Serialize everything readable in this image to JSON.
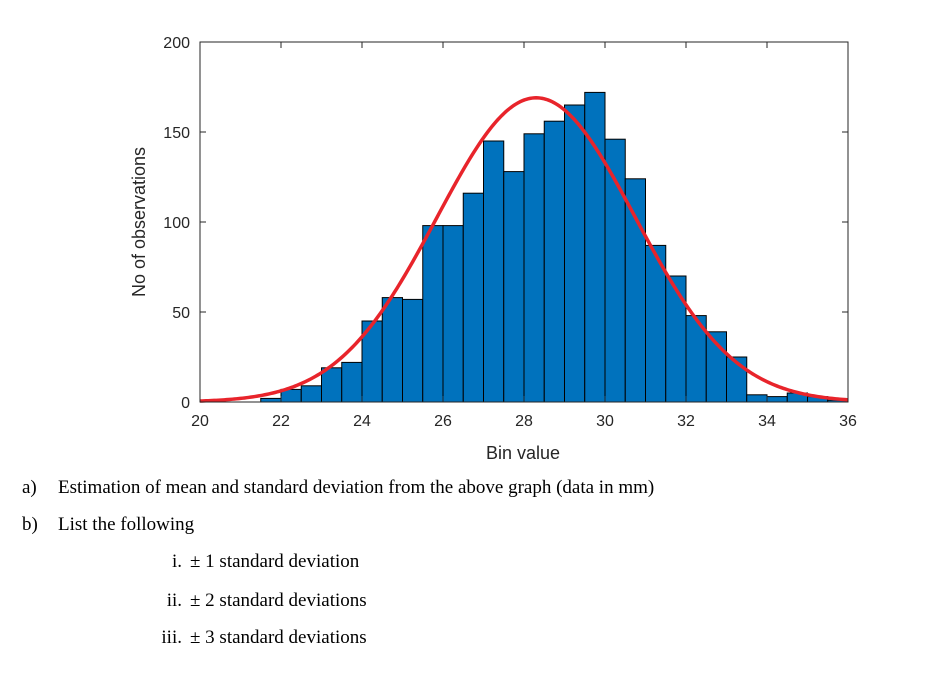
{
  "chart_data": {
    "type": "bar",
    "title": "",
    "xlabel": "Bin value",
    "ylabel": "No of observations",
    "xlim": [
      20,
      36
    ],
    "ylim": [
      0,
      200
    ],
    "xticks": [
      20,
      22,
      24,
      26,
      28,
      30,
      32,
      34,
      36
    ],
    "yticks": [
      0,
      50,
      100,
      150,
      200
    ],
    "bin_width": 0.5,
    "bins": [
      {
        "x0": 20.0,
        "value": 0
      },
      {
        "x0": 20.5,
        "value": 0
      },
      {
        "x0": 21.0,
        "value": 0
      },
      {
        "x0": 21.5,
        "value": 2
      },
      {
        "x0": 22.0,
        "value": 7
      },
      {
        "x0": 22.5,
        "value": 9
      },
      {
        "x0": 23.0,
        "value": 19
      },
      {
        "x0": 23.5,
        "value": 22
      },
      {
        "x0": 24.0,
        "value": 45
      },
      {
        "x0": 24.5,
        "value": 58
      },
      {
        "x0": 25.0,
        "value": 57
      },
      {
        "x0": 25.5,
        "value": 98
      },
      {
        "x0": 26.0,
        "value": 98
      },
      {
        "x0": 26.5,
        "value": 116
      },
      {
        "x0": 27.0,
        "value": 145
      },
      {
        "x0": 27.5,
        "value": 128
      },
      {
        "x0": 28.0,
        "value": 149
      },
      {
        "x0": 28.5,
        "value": 156
      },
      {
        "x0": 29.0,
        "value": 165
      },
      {
        "x0": 29.5,
        "value": 172
      },
      {
        "x0": 30.0,
        "value": 146
      },
      {
        "x0": 30.5,
        "value": 124
      },
      {
        "x0": 31.0,
        "value": 87
      },
      {
        "x0": 31.5,
        "value": 70
      },
      {
        "x0": 32.0,
        "value": 48
      },
      {
        "x0": 32.5,
        "value": 39
      },
      {
        "x0": 33.0,
        "value": 25
      },
      {
        "x0": 33.5,
        "value": 4
      },
      {
        "x0": 34.0,
        "value": 3
      },
      {
        "x0": 34.5,
        "value": 5
      },
      {
        "x0": 35.0,
        "value": 3
      },
      {
        "x0": 35.5,
        "value": 1
      }
    ],
    "fit_curve": {
      "type": "normal",
      "mean": 28.3,
      "std": 2.45,
      "peak": 169
    },
    "colors": {
      "bar_fill": "#0072BD",
      "bar_edge": "#000000",
      "curve": "#E8242B",
      "axis": "#262626"
    }
  },
  "questions": [
    {
      "marker": "a)",
      "text": "Estimation of mean and standard deviation from the above graph (data in mm)"
    },
    {
      "marker": "b)",
      "text": "List the following"
    }
  ],
  "sub_items": [
    {
      "marker": "i.",
      "text": "± 1 standard deviation"
    },
    {
      "marker": "ii.",
      "text": "± 2 standard deviations"
    },
    {
      "marker": "iii.",
      "text": "± 3 standard deviations"
    }
  ]
}
